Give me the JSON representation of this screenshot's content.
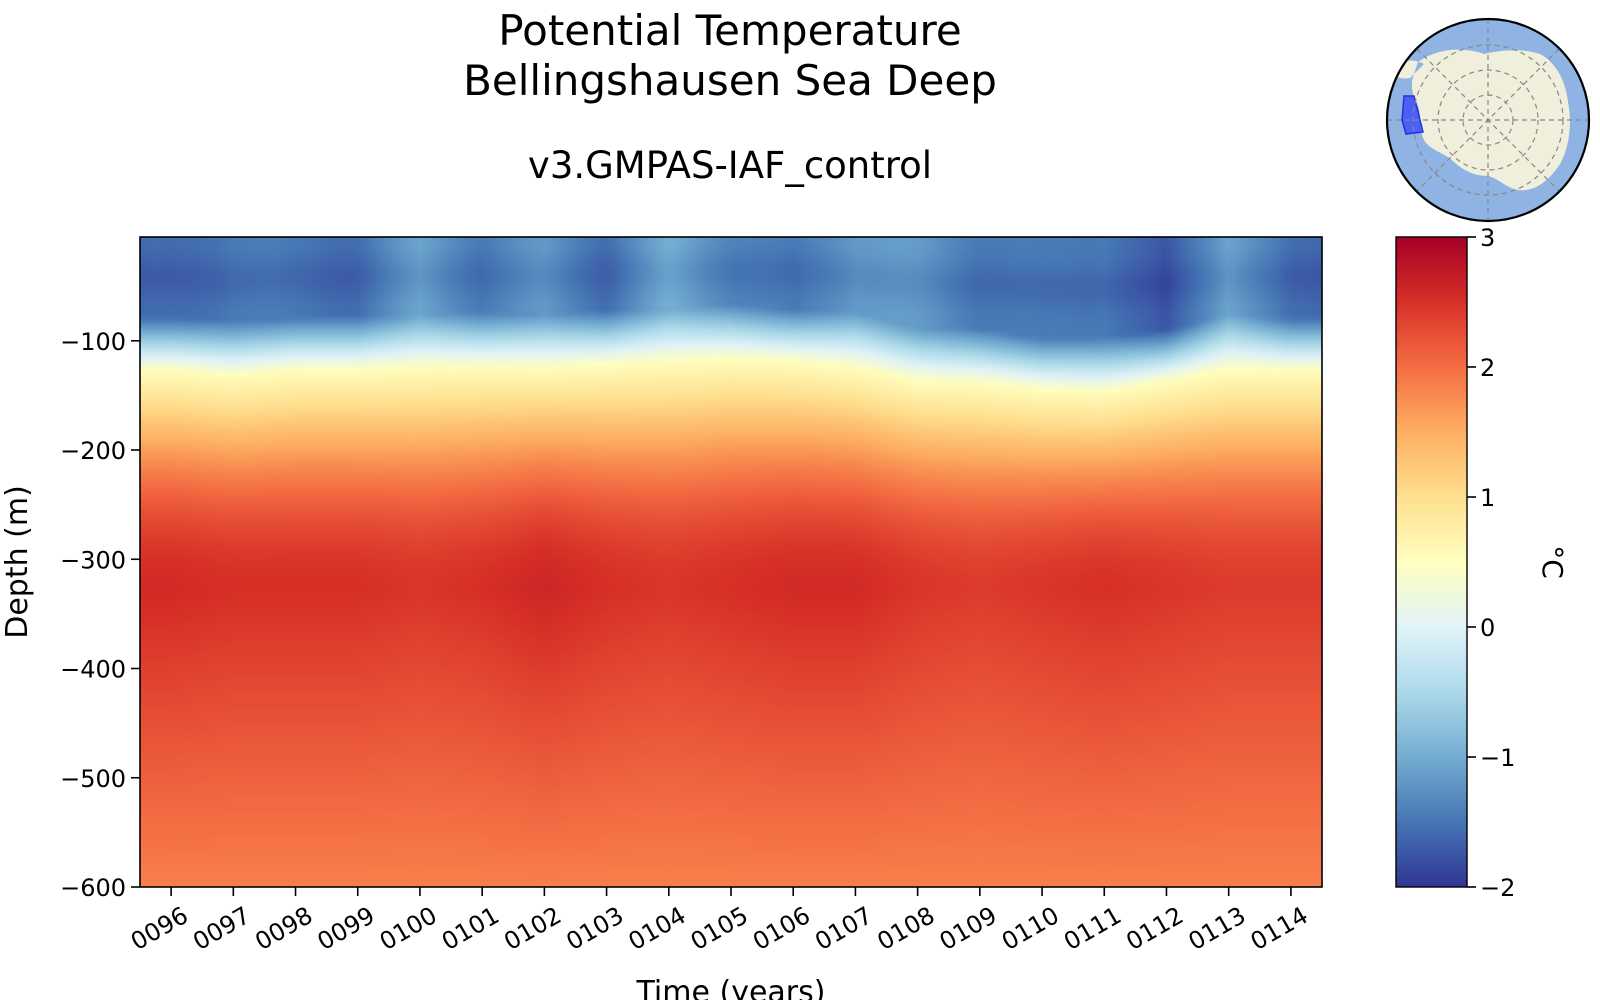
{
  "chart_data": {
    "type": "heatmap",
    "title": "Potential Temperature",
    "region": "Bellingshausen Sea Deep",
    "subtitle": "v3.GMPAS-IAF_control",
    "xlabel": "Time (years)",
    "ylabel": "Depth (m)",
    "x_ticks": [
      "0096",
      "0097",
      "0098",
      "0099",
      "0100",
      "0101",
      "0102",
      "0103",
      "0104",
      "0105",
      "0106",
      "0107",
      "0108",
      "0109",
      "0110",
      "0111",
      "0112",
      "0113",
      "0114"
    ],
    "x_range": [
      95.5,
      114.5
    ],
    "y_ticks": [
      -100,
      -200,
      -300,
      -400,
      -500,
      -600
    ],
    "y_tick_labels": [
      "−100",
      "−200",
      "−300",
      "−400",
      "−500",
      "−600"
    ],
    "ylim": [
      -600,
      -5
    ],
    "colorbar": {
      "label": "°C",
      "min": -2,
      "max": 3,
      "ticks": [
        3,
        2,
        1,
        0,
        -1,
        -2
      ],
      "tick_labels": [
        "3",
        "2",
        "1",
        "0",
        "−1",
        "−2"
      ],
      "colormap": "RdYlBu_r"
    },
    "thermocline_depth_by_year": [
      -100,
      -105,
      -100,
      -100,
      -98,
      -97,
      -98,
      -95,
      -93,
      -90,
      -92,
      -98,
      -110,
      -112,
      -118,
      -120,
      -110,
      -100,
      -100
    ],
    "surface_temp_by_year": [
      -1.6,
      -1.4,
      -1.5,
      -1.5,
      -1.1,
      -1.4,
      -1.2,
      -1.5,
      -1.0,
      -1.3,
      -1.5,
      -1.1,
      -1.2,
      -1.4,
      -1.5,
      -1.4,
      -1.8,
      -1.0,
      -1.6
    ],
    "max_temp_by_year": [
      2.55,
      2.5,
      2.5,
      2.5,
      2.45,
      2.5,
      2.6,
      2.5,
      2.45,
      2.5,
      2.55,
      2.55,
      2.45,
      2.4,
      2.45,
      2.5,
      2.45,
      2.4,
      2.4
    ],
    "deep_temp": 1.85
  },
  "inset_map": {
    "type": "south-polar-map",
    "highlight": "Bellingshausen Sea"
  },
  "colors": {
    "ocean": "#8fb3e3",
    "land": "#efefdb",
    "region": "#3344ff"
  }
}
